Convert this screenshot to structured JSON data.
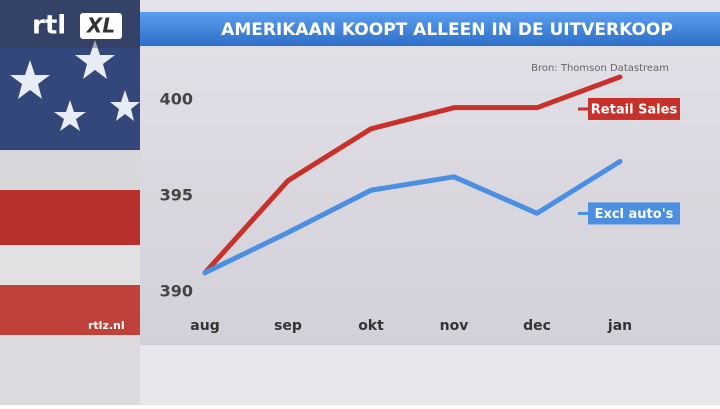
{
  "logo_text": "rtl",
  "logo_badge": "XL",
  "website": "rtlz.nl",
  "chart_data": {
    "type": "line",
    "title": "AMERIKAAN KOOPT ALLEEN IN DE UITVERKOOP",
    "source": "Bron: Thomson Datastream",
    "categories": [
      "aug",
      "sep",
      "okt",
      "nov",
      "dec",
      "jan"
    ],
    "series": [
      {
        "name": "Retail Sales",
        "color": "#c8302a",
        "values": [
          391,
          395.8,
          398.5,
          399.6,
          399.6,
          401.2
        ]
      },
      {
        "name": "Excl auto's",
        "color": "#4a8fe2",
        "values": [
          391,
          393.1,
          395.3,
          396.0,
          394.1,
          396.8
        ]
      }
    ],
    "ylim": [
      389,
      402
    ],
    "yticks": [
      390,
      395,
      400
    ],
    "grid": false
  }
}
